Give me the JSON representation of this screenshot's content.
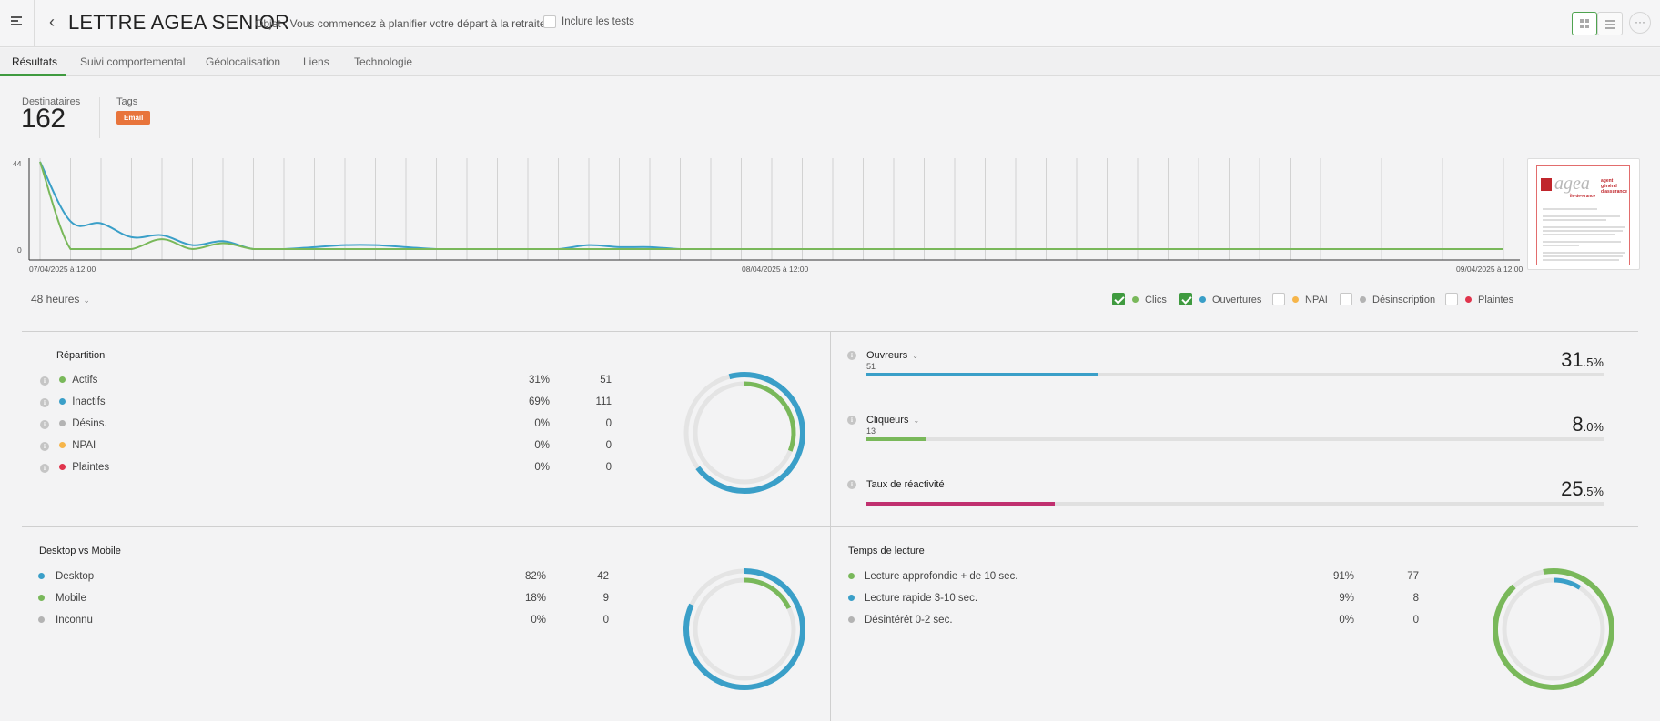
{
  "header": {
    "title": "LETTRE AGEA SENIOR",
    "subject": "Objet : Vous commencez à planifier votre départ à la retraite ?",
    "include_tests": "Inclure les tests",
    "more": "···"
  },
  "tabs": [
    "Résultats",
    "Suivi comportemental",
    "Géolocalisation",
    "Liens",
    "Technologie"
  ],
  "stats": {
    "recipients_label": "Destinataires",
    "recipients_value": "162",
    "tags_label": "Tags",
    "tag": "Email"
  },
  "chart_data": {
    "type": "line",
    "ylim": [
      0,
      44
    ],
    "y_ticks": [
      "44",
      "0"
    ],
    "x_tick_labels": [
      "07/04/2025 à 12:00",
      "08/04/2025 à 12:00",
      "09/04/2025 à 12:00"
    ],
    "x_hours": [
      0,
      1,
      2,
      3,
      4,
      5,
      6,
      7,
      8,
      9,
      10,
      11,
      12,
      13,
      14,
      15,
      16,
      17,
      18,
      19,
      20,
      21,
      22,
      23,
      24,
      25,
      26,
      27,
      28,
      29,
      30,
      31,
      32,
      33,
      34,
      35,
      36,
      37,
      38,
      39,
      40,
      41,
      42,
      43,
      44,
      45,
      46,
      47,
      48
    ],
    "series": [
      {
        "name": "Ouvertures",
        "color": "#3a9fc8",
        "values": [
          44,
          14,
          13,
          6,
          7,
          2,
          4,
          0,
          0,
          1,
          2,
          2,
          1,
          0,
          0,
          0,
          0,
          0,
          2,
          1,
          1,
          0,
          0,
          0,
          0,
          0,
          0,
          0,
          0,
          0,
          0,
          0,
          0,
          0,
          0,
          0,
          0,
          0,
          0,
          0,
          0,
          0,
          0,
          0,
          0,
          0,
          0,
          0,
          0
        ]
      },
      {
        "name": "Clics",
        "color": "#79b85a",
        "values": [
          44,
          0,
          0,
          0,
          5,
          0,
          3,
          0,
          0,
          0,
          0,
          0,
          0,
          0,
          0,
          0,
          0,
          0,
          0,
          0,
          0,
          0,
          0,
          0,
          0,
          0,
          0,
          0,
          0,
          0,
          0,
          0,
          0,
          0,
          0,
          0,
          0,
          0,
          0,
          0,
          0,
          0,
          0,
          0,
          0,
          0,
          0,
          0,
          0
        ]
      }
    ]
  },
  "controls": {
    "range": "48 heures"
  },
  "legend": [
    {
      "label": "Clics",
      "checked": true,
      "color": "#79b85a"
    },
    {
      "label": "Ouvertures",
      "checked": true,
      "color": "#3a9fc8"
    },
    {
      "label": "NPAI",
      "checked": false,
      "color": "#f6b54a"
    },
    {
      "label": "Désinscription",
      "checked": false,
      "color": "#b3b3b3"
    },
    {
      "label": "Plaintes",
      "checked": false,
      "color": "#e0344c"
    }
  ],
  "repartition": {
    "title": "Répartition",
    "rows": [
      {
        "label": "Actifs",
        "pct": "31%",
        "count": "51",
        "color": "#79b85a"
      },
      {
        "label": "Inactifs",
        "pct": "69%",
        "count": "111",
        "color": "#3a9fc8"
      },
      {
        "label": "Désins.",
        "pct": "0%",
        "count": "0",
        "color": "#b3b3b3"
      },
      {
        "label": "NPAI",
        "pct": "0%",
        "count": "0",
        "color": "#f6b54a"
      },
      {
        "label": "Plaintes",
        "pct": "0%",
        "count": "0",
        "color": "#e0344c"
      }
    ]
  },
  "metrics": [
    {
      "label": "Ouvreurs",
      "count": "51",
      "int": "31",
      "dec": ".5%",
      "fraction": 0.315,
      "color": "#3a9fc8",
      "dropdown": true
    },
    {
      "label": "Cliqueurs",
      "count": "13",
      "int": "8",
      "dec": ".0%",
      "fraction": 0.08,
      "color": "#79b85a",
      "dropdown": true
    },
    {
      "label": "Taux de réactivité",
      "count": "",
      "int": "25",
      "dec": ".5%",
      "fraction": 0.255,
      "color": "#c0306f",
      "dropdown": false
    }
  ],
  "devices": {
    "title": "Desktop vs Mobile",
    "rows": [
      {
        "label": "Desktop",
        "pct": "82%",
        "count": "42",
        "color": "#3a9fc8"
      },
      {
        "label": "Mobile",
        "pct": "18%",
        "count": "9",
        "color": "#79b85a"
      },
      {
        "label": "Inconnu",
        "pct": "0%",
        "count": "0",
        "color": "#b3b3b3"
      }
    ]
  },
  "reading": {
    "title": "Temps de lecture",
    "rows": [
      {
        "label": "Lecture approfondie + de 10 sec.",
        "pct": "91%",
        "count": "77",
        "color": "#79b85a"
      },
      {
        "label": "Lecture rapide 3-10 sec.",
        "pct": "9%",
        "count": "8",
        "color": "#3a9fc8"
      },
      {
        "label": "Désintérêt 0-2 sec.",
        "pct": "0%",
        "count": "0",
        "color": "#b3b3b3"
      }
    ]
  },
  "thumbnail": {
    "logo": "agea",
    "tagline": "agent général d'assurance",
    "heading": "Île-de-France"
  }
}
